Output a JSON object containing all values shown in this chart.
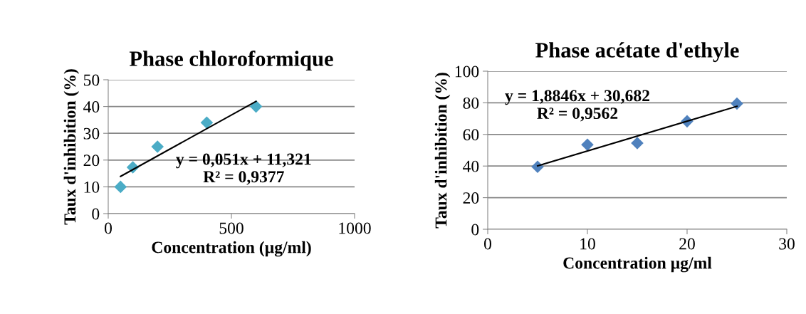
{
  "chart_data": [
    {
      "type": "scatter",
      "title": "Phase chloroformique",
      "xlabel": "Concentration (µg/ml)",
      "ylabel": "Taux d'inhibition (%)",
      "xlim": [
        0,
        1000
      ],
      "xticks": [
        0,
        500,
        1000
      ],
      "ylim": [
        0,
        50
      ],
      "yticks": [
        0,
        10,
        20,
        30,
        40,
        50
      ],
      "grid": "y",
      "legend": false,
      "series": [
        {
          "marker": "diamond",
          "color": "#4bacc6",
          "x": [
            50,
            100,
            200,
            400,
            600
          ],
          "values": [
            10,
            17.3,
            25,
            34,
            40
          ]
        },
        {
          "type": "line",
          "color": "#000000",
          "x": [
            50,
            600
          ],
          "values": [
            13.9,
            41.9
          ]
        }
      ],
      "annotations": [
        "y = 0,051x + 11,321\nR² = 0,9377"
      ]
    },
    {
      "type": "scatter",
      "title": "Phase acétate d'ethyle",
      "xlabel": "Concentration µg/ml",
      "ylabel": "Taux d'inhibition (%)",
      "xlim": [
        0,
        30
      ],
      "xticks": [
        0,
        10,
        20,
        30
      ],
      "ylim": [
        0,
        100
      ],
      "yticks": [
        0,
        20,
        40,
        60,
        80,
        100
      ],
      "grid": "y",
      "legend": false,
      "series": [
        {
          "marker": "diamond",
          "color": "#4f81bd",
          "x": [
            5,
            10,
            15,
            20,
            25
          ],
          "values": [
            39.5,
            53.5,
            54.5,
            68.3,
            79.5
          ]
        },
        {
          "type": "line",
          "color": "#000000",
          "x": [
            5,
            25
          ],
          "values": [
            40.1,
            77.8
          ]
        }
      ],
      "annotations": [
        "y = 1,8846x + 30,682\nR² = 0,9562"
      ]
    }
  ]
}
